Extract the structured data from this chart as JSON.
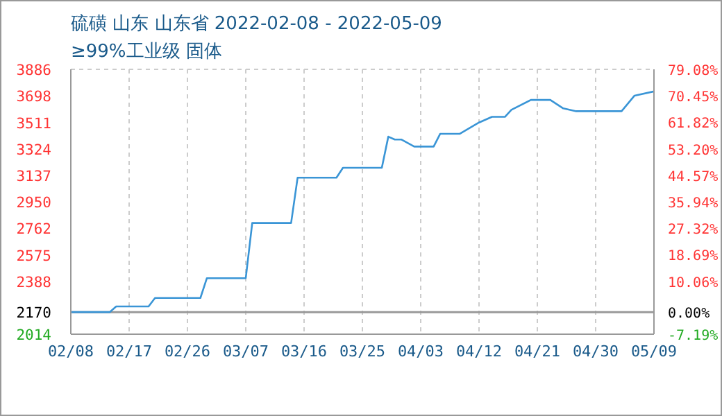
{
  "chart_data": {
    "type": "line",
    "title": "硫磺 山东 山东省 2022-02-08 - 2022-05-09",
    "subtitle": "≥99%工业级 固体",
    "x": [
      "2022-02-08",
      "2022-02-14",
      "2022-02-15",
      "2022-02-20",
      "2022-02-21",
      "2022-02-28",
      "2022-03-01",
      "2022-03-07",
      "2022-03-08",
      "2022-03-14",
      "2022-03-15",
      "2022-03-21",
      "2022-03-22",
      "2022-03-28",
      "2022-03-29",
      "2022-03-30",
      "2022-03-31",
      "2022-04-02",
      "2022-04-05",
      "2022-04-06",
      "2022-04-09",
      "2022-04-12",
      "2022-04-14",
      "2022-04-16",
      "2022-04-17",
      "2022-04-20",
      "2022-04-23",
      "2022-04-25",
      "2022-04-27",
      "2022-05-04",
      "2022-05-06",
      "2022-05-09"
    ],
    "series": [
      {
        "color": "#3a95d6",
        "values": [
          2170,
          2170,
          2210,
          2210,
          2270,
          2270,
          2410,
          2410,
          2800,
          2800,
          3120,
          3120,
          3190,
          3190,
          3410,
          3390,
          3390,
          3340,
          3340,
          3430,
          3430,
          3510,
          3550,
          3550,
          3600,
          3670,
          3670,
          3610,
          3590,
          3590,
          3700,
          3730
        ]
      }
    ],
    "xlim": [
      "2022-02-08",
      "2022-05-09"
    ],
    "xticks": [
      {
        "value": "2022-02-08",
        "label": "02/08"
      },
      {
        "value": "2022-02-17",
        "label": "02/17"
      },
      {
        "value": "2022-02-26",
        "label": "02/26"
      },
      {
        "value": "2022-03-07",
        "label": "03/07"
      },
      {
        "value": "2022-03-16",
        "label": "03/16"
      },
      {
        "value": "2022-03-25",
        "label": "03/25"
      },
      {
        "value": "2022-04-03",
        "label": "04/03"
      },
      {
        "value": "2022-04-12",
        "label": "04/12"
      },
      {
        "value": "2022-04-21",
        "label": "04/21"
      },
      {
        "value": "2022-04-30",
        "label": "04/30"
      },
      {
        "value": "2022-05-09",
        "label": "05/09"
      }
    ],
    "ylim": [
      2014,
      3886
    ],
    "yticks": [
      2014,
      2170,
      2388,
      2575,
      2762,
      2950,
      3137,
      3324,
      3511,
      3698,
      3886
    ],
    "y2lim": [
      -7.19,
      79.08
    ],
    "y2ticks": [
      {
        "value": -7.19,
        "label": "-7.19%"
      },
      {
        "value": 0,
        "label": "0.00%"
      },
      {
        "value": 10.06,
        "label": "10.06%"
      },
      {
        "value": 18.69,
        "label": "18.69%"
      },
      {
        "value": 27.32,
        "label": "27.32%"
      },
      {
        "value": 35.94,
        "label": "35.94%"
      },
      {
        "value": 44.57,
        "label": "44.57%"
      },
      {
        "value": 53.2,
        "label": "53.20%"
      },
      {
        "value": 61.82,
        "label": "61.82%"
      },
      {
        "value": 70.45,
        "label": "70.45%"
      },
      {
        "value": 79.08,
        "label": "79.08%"
      }
    ],
    "ref_lines": [
      {
        "axis": "y",
        "value": 2170,
        "color": "#999999",
        "line_style": "solid"
      }
    ],
    "grid": true,
    "marker": "none",
    "line_style": "solid"
  }
}
